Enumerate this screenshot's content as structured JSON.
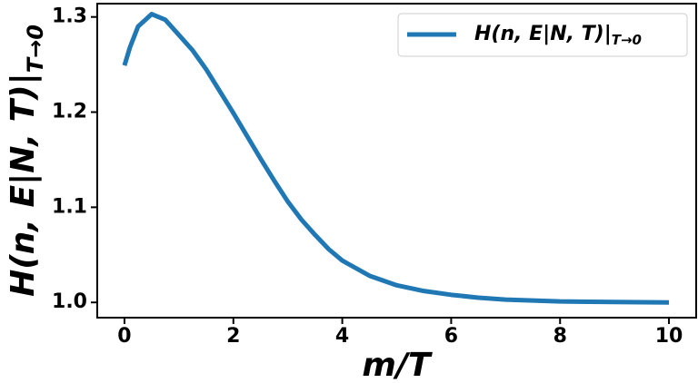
{
  "chart_data": {
    "type": "line",
    "xlabel": "m/T",
    "ylabel": "H(n, E|N, T)|",
    "ylabel_subscript": "T→0",
    "x": [
      0,
      0.1,
      0.25,
      0.5,
      0.75,
      1,
      1.25,
      1.5,
      1.75,
      2,
      2.25,
      2.5,
      2.75,
      3,
      3.25,
      3.5,
      3.75,
      4,
      4.5,
      5,
      5.5,
      6,
      6.5,
      7,
      8,
      9,
      10
    ],
    "series": [
      {
        "name": "H(n, E|N, T)|",
        "name_subscript": "T→0",
        "color": "#1f77b4",
        "values": [
          1.249,
          1.268,
          1.29,
          1.303,
          1.297,
          1.281,
          1.265,
          1.245,
          1.222,
          1.199,
          1.175,
          1.151,
          1.128,
          1.106,
          1.087,
          1.071,
          1.056,
          1.044,
          1.028,
          1.018,
          1.012,
          1.008,
          1.005,
          1.003,
          1.001,
          1.0005,
          1.0
        ]
      }
    ],
    "xlim": [
      -0.5,
      10.5
    ],
    "ylim": [
      0.984,
      1.314
    ],
    "xticks": [
      0,
      2,
      4,
      6,
      8,
      10
    ],
    "yticks": [
      {
        "value": 1.0,
        "label": "1.0"
      },
      1.1,
      1.2,
      1.3
    ],
    "legend": "upper right"
  }
}
